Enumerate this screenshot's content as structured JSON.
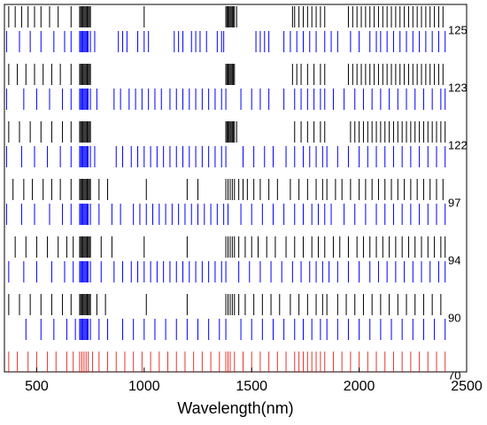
{
  "chart_data": {
    "type": "eventplot",
    "xlabel": "Wavelength(nm)",
    "xlim": [
      350,
      2500
    ],
    "xticks": [
      500,
      1000,
      1500,
      2000,
      2500
    ],
    "rows": [
      {
        "label": "125",
        "series": [
          {
            "color": "#000000",
            "values": [
              370,
              400,
              430,
              460,
              490,
              520,
              560,
              600,
              660,
              700,
              705,
              710,
              715,
              720,
              725,
              730,
              735,
              740,
              745,
              750,
              1000,
              1380,
              1385,
              1390,
              1395,
              1400,
              1405,
              1410,
              1415,
              1420,
              1430,
              1690,
              1700,
              1720,
              1740,
              1760,
              1780,
              1800,
              1820,
              1840,
              1950,
              1970,
              1990,
              2010,
              2030,
              2050,
              2070,
              2090,
              2110,
              2130,
              2150,
              2170,
              2190,
              2210,
              2230,
              2250,
              2270,
              2290,
              2310,
              2330,
              2350,
              2370,
              2390
            ]
          },
          {
            "color": "#0000ff",
            "values": [
              360,
              420,
              470,
              520,
              580,
              630,
              660,
              700,
              705,
              710,
              715,
              720,
              725,
              730,
              735,
              740,
              750,
              770,
              880,
              900,
              920,
              970,
              1000,
              1020,
              1140,
              1160,
              1180,
              1220,
              1240,
              1260,
              1290,
              1340,
              1360,
              1370,
              1520,
              1540,
              1560,
              1580,
              1650,
              1680,
              1710,
              1740,
              1770,
              1800,
              1840,
              1870,
              1900,
              1960,
              2000,
              2050,
              2080,
              2100,
              2130,
              2160,
              2190,
              2220,
              2250,
              2280,
              2310,
              2340,
              2370,
              2400
            ]
          }
        ]
      },
      {
        "label": "123",
        "series": [
          {
            "color": "#000000",
            "values": [
              370,
              410,
              450,
              490,
              530,
              570,
              610,
              660,
              700,
              705,
              710,
              715,
              720,
              725,
              730,
              735,
              740,
              745,
              750,
              1380,
              1385,
              1390,
              1395,
              1400,
              1405,
              1410,
              1415,
              1420,
              1690,
              1710,
              1730,
              1760,
              1790,
              1820,
              1840,
              1950,
              1970,
              1990,
              2010,
              2030,
              2050,
              2070,
              2090,
              2110,
              2130,
              2150,
              2170,
              2190,
              2210,
              2230,
              2250,
              2270,
              2290,
              2310,
              2330,
              2350,
              2370,
              2390
            ]
          },
          {
            "color": "#0000ff",
            "values": [
              360,
              440,
              500,
              560,
              620,
              660,
              700,
              705,
              710,
              715,
              720,
              725,
              730,
              735,
              740,
              750,
              780,
              860,
              890,
              930,
              960,
              990,
              1020,
              1050,
              1080,
              1120,
              1150,
              1180,
              1210,
              1240,
              1270,
              1300,
              1330,
              1360,
              1380,
              1450,
              1500,
              1540,
              1580,
              1650,
              1700,
              1730,
              1760,
              1790,
              1820,
              1840,
              1880,
              1930,
              1980,
              2020,
              2060,
              2100,
              2140,
              2180,
              2220,
              2260,
              2300,
              2340,
              2380,
              2400
            ]
          }
        ]
      },
      {
        "label": "122",
        "series": [
          {
            "color": "#000000",
            "values": [
              370,
              420,
              470,
              520,
              570,
              620,
              660,
              700,
              705,
              710,
              715,
              720,
              725,
              730,
              735,
              740,
              745,
              750,
              1380,
              1385,
              1390,
              1395,
              1400,
              1405,
              1410,
              1415,
              1420,
              1430,
              1700,
              1730,
              1760,
              1790,
              1820,
              1840,
              1960,
              1980,
              2000,
              2020,
              2040,
              2060,
              2080,
              2100,
              2120,
              2140,
              2160,
              2180,
              2200,
              2220,
              2240,
              2260,
              2280,
              2300,
              2320,
              2340,
              2360,
              2380,
              2400
            ]
          },
          {
            "color": "#0000ff",
            "values": [
              360,
              430,
              490,
              550,
              610,
              660,
              700,
              705,
              710,
              715,
              720,
              725,
              730,
              735,
              740,
              750,
              770,
              870,
              900,
              940,
              970,
              1000,
              1030,
              1060,
              1090,
              1120,
              1150,
              1180,
              1210,
              1240,
              1270,
              1300,
              1330,
              1360,
              1380,
              1460,
              1510,
              1560,
              1600,
              1660,
              1700,
              1740,
              1770,
              1800,
              1830,
              1850,
              1900,
              1950,
              2000,
              2040,
              2080,
              2120,
              2160,
              2200,
              2240,
              2280,
              2320,
              2360,
              2400
            ]
          }
        ]
      },
      {
        "label": "97",
        "series": [
          {
            "color": "#000000",
            "values": [
              390,
              440,
              480,
              530,
              570,
              610,
              660,
              700,
              705,
              710,
              715,
              720,
              725,
              730,
              735,
              740,
              745,
              750,
              790,
              830,
              1010,
              1200,
              1250,
              1380,
              1390,
              1400,
              1410,
              1420,
              1440,
              1460,
              1480,
              1510,
              1540,
              1580,
              1620,
              1680,
              1720,
              1760,
              1800,
              1830,
              1850,
              1890,
              1920,
              1960,
              2000,
              2030,
              2060,
              2090,
              2120,
              2150,
              2180,
              2210,
              2240,
              2270,
              2300,
              2330,
              2360,
              2390
            ]
          },
          {
            "color": "#0000ff",
            "values": [
              360,
              430,
              490,
              560,
              620,
              660,
              700,
              705,
              710,
              715,
              720,
              725,
              730,
              735,
              740,
              750,
              790,
              850,
              890,
              950,
              980,
              1010,
              1040,
              1070,
              1100,
              1130,
              1160,
              1190,
              1220,
              1250,
              1280,
              1310,
              1340,
              1370,
              1390,
              1450,
              1500,
              1550,
              1600,
              1650,
              1700,
              1740,
              1780,
              1810,
              1840,
              1870,
              1930,
              1980,
              2030,
              2080,
              2120,
              2160,
              2200,
              2240,
              2280,
              2320,
              2360,
              2400
            ]
          }
        ]
      },
      {
        "label": "94",
        "series": [
          {
            "color": "#000000",
            "values": [
              400,
              450,
              500,
              550,
              600,
              640,
              670,
              700,
              705,
              710,
              715,
              720,
              725,
              730,
              735,
              740,
              745,
              750,
              800,
              850,
              1000,
              1200,
              1380,
              1390,
              1400,
              1410,
              1420,
              1440,
              1470,
              1500,
              1530,
              1570,
              1610,
              1660,
              1700,
              1740,
              1780,
              1810,
              1840,
              1880,
              1910,
              1950,
              1990,
              2020,
              2050,
              2080,
              2110,
              2140,
              2170,
              2200,
              2230,
              2260,
              2290,
              2320,
              2350,
              2380,
              2400
            ]
          },
          {
            "color": "#0000ff",
            "values": [
              370,
              440,
              500,
              570,
              630,
              670,
              700,
              705,
              710,
              715,
              720,
              725,
              730,
              735,
              740,
              750,
              800,
              860,
              900,
              940,
              970,
              1000,
              1030,
              1060,
              1090,
              1120,
              1150,
              1180,
              1210,
              1240,
              1270,
              1300,
              1330,
              1360,
              1380,
              1440,
              1490,
              1540,
              1590,
              1640,
              1690,
              1730,
              1770,
              1800,
              1830,
              1860,
              1900,
              1950,
              2000,
              2050,
              2090,
              2130,
              2170,
              2210,
              2250,
              2290,
              2330,
              2370,
              2400
            ]
          }
        ]
      },
      {
        "label": "90",
        "series": [
          {
            "color": "#000000",
            "values": [
              370,
              420,
              470,
              520,
              570,
              620,
              660,
              700,
              705,
              710,
              715,
              720,
              725,
              730,
              735,
              740,
              745,
              750,
              780,
              820,
              1010,
              1200,
              1380,
              1390,
              1400,
              1410,
              1420,
              1440,
              1470,
              1510,
              1550,
              1590,
              1630,
              1680,
              1720,
              1760,
              1800,
              1830,
              1850,
              1900,
              1940,
              1980,
              2020,
              2060,
              2100,
              2140,
              2180,
              2220,
              2260,
              2300,
              2340,
              2380
            ]
          },
          {
            "color": "#0000ff",
            "values": [
              450,
              520,
              580,
              640,
              680,
              700,
              705,
              710,
              715,
              720,
              725,
              730,
              735,
              740,
              750,
              790,
              830,
              900,
              950,
              1000,
              1050,
              1100,
              1150,
              1200,
              1250,
              1300,
              1350,
              1380,
              1450,
              1500,
              1550,
              1600,
              1650,
              1700,
              1740,
              1780,
              1820,
              1850,
              1900,
              1950,
              2000,
              2050,
              2100,
              2150,
              2200,
              2250,
              2300,
              2350,
              2400
            ]
          }
        ]
      },
      {
        "label": "70",
        "series": [
          {
            "color": "#e8352e",
            "values": [
              370,
              410,
              460,
              500,
              550,
              590,
              640,
              670,
              700,
              710,
              720,
              730,
              740,
              760,
              790,
              830,
              870,
              910,
              950,
              990,
              1030,
              1070,
              1110,
              1150,
              1190,
              1230,
              1270,
              1310,
              1350,
              1380,
              1390,
              1400,
              1420,
              1460,
              1500,
              1540,
              1580,
              1620,
              1660,
              1700,
              1720,
              1740,
              1760,
              1780,
              1800,
              1820,
              1840,
              1880,
              1920,
              1960,
              2000,
              2040,
              2080,
              2120,
              2160,
              2200,
              2240,
              2280,
              2320,
              2360,
              2400
            ]
          }
        ]
      }
    ]
  }
}
